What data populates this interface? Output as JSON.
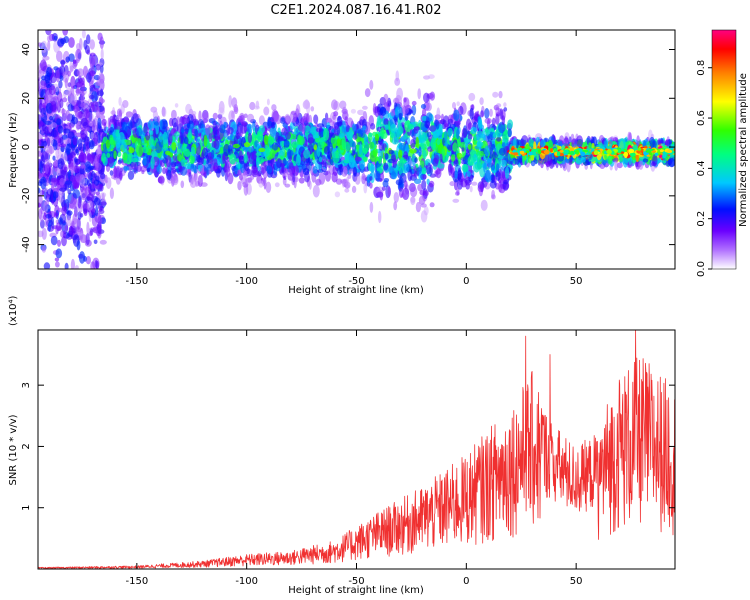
{
  "title": "C2E1.2024.087.16.41.R02",
  "chart_data": [
    {
      "type": "heatmap",
      "xlabel": "Height of straight line (km)",
      "ylabel": "Frequency (Hz)",
      "xlim": [
        -195,
        95
      ],
      "ylim": [
        -50,
        48
      ],
      "x_ticks": [
        -150,
        -100,
        -50,
        0,
        50
      ],
      "y_ticks": [
        -40,
        -20,
        0,
        20,
        40
      ],
      "colorbar": {
        "label": "Normalized spectral amplitude",
        "range": [
          0,
          0.95
        ],
        "ticks": [
          "0.0",
          "0.2",
          "0.4",
          "0.6",
          "0.8"
        ],
        "tick_values": [
          0,
          0.2,
          0.4,
          0.6,
          0.8
        ],
        "colors": [
          "#ffffff",
          "#8000ff",
          "#0000ff",
          "#00e0ff",
          "#00ff00",
          "#ffff00",
          "#ff8000",
          "#ff0000",
          "#ff0080"
        ]
      },
      "bands": [
        {
          "x_range": [
            -195,
            -165
          ],
          "center_hz": 0,
          "half_width_hz": 48,
          "peak_amplitude": 0.2
        },
        {
          "x_range": [
            -165,
            20
          ],
          "center_hz": 0,
          "half_width_hz": 15,
          "peak_amplitude": 0.5
        },
        {
          "x_range": [
            20,
            95
          ],
          "center_hz": -2,
          "half_width_hz": 5,
          "peak_amplitude": 0.85
        }
      ]
    },
    {
      "type": "line",
      "xlabel": "Height of straight line (km)",
      "ylabel": "SNR (10 * v/v)",
      "y_multiplier": "(x10⁴)",
      "xlim": [
        -195,
        95
      ],
      "ylim": [
        0,
        3.9
      ],
      "x_ticks": [
        -150,
        -100,
        -50,
        0,
        50
      ],
      "y_ticks": [
        1,
        2,
        3
      ],
      "color": "#f03030",
      "envelope": {
        "x": [
          -195,
          -150,
          -120,
          -100,
          -80,
          -60,
          -40,
          -20,
          0,
          20,
          30,
          40,
          50,
          60,
          70,
          80,
          95
        ],
        "y": [
          0.02,
          0.04,
          0.1,
          0.18,
          0.22,
          0.35,
          0.7,
          1.0,
          1.4,
          2.0,
          2.4,
          1.9,
          1.6,
          1.8,
          2.4,
          2.6,
          2.2
        ]
      },
      "peaks": [
        {
          "x": 27,
          "y": 3.8
        },
        {
          "x": 38,
          "y": 3.5
        },
        {
          "x": 77,
          "y": 3.9
        }
      ]
    }
  ]
}
